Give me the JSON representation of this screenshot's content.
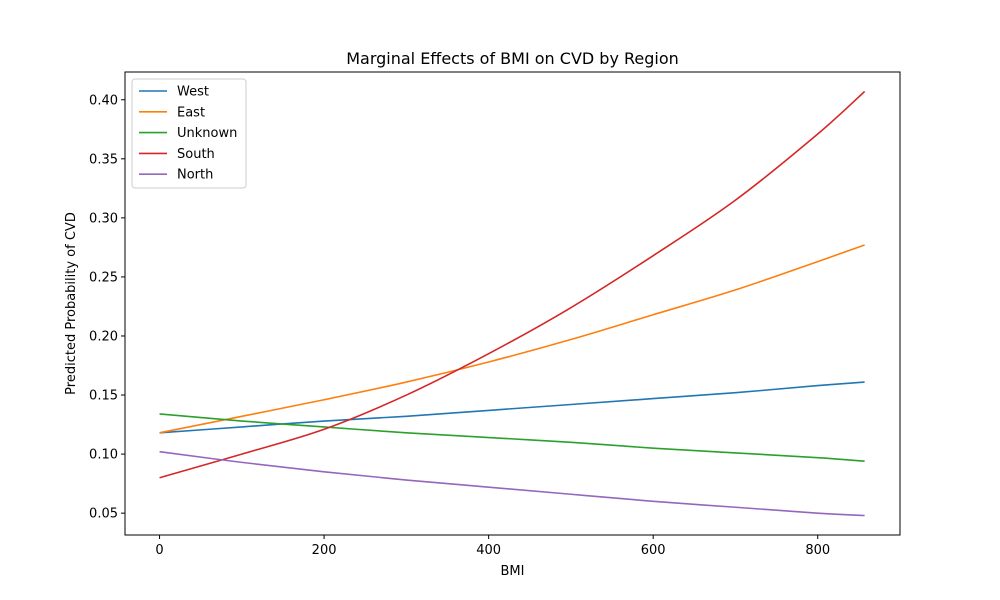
{
  "chart_data": {
    "type": "line",
    "title": "Marginal Effects of BMI on CVD by Region",
    "xlabel": "BMI",
    "ylabel": "Predicted Probability of CVD",
    "xlim": [
      -42,
      900
    ],
    "ylim": [
      0.0315,
      0.4235
    ],
    "xticks": [
      0,
      200,
      400,
      600,
      800
    ],
    "yticks": [
      0.05,
      0.1,
      0.15,
      0.2,
      0.25,
      0.3,
      0.35,
      0.4
    ],
    "xtick_labels": [
      "0",
      "200",
      "400",
      "600",
      "800"
    ],
    "ytick_labels": [
      "0.05",
      "0.10",
      "0.15",
      "0.20",
      "0.25",
      "0.30",
      "0.35",
      "0.40"
    ],
    "grid": false,
    "legend_position": "top-left",
    "x": [
      0,
      100,
      200,
      300,
      400,
      500,
      600,
      700,
      800,
      857
    ],
    "series": [
      {
        "name": "West",
        "color": "#1f77b4",
        "values": [
          0.118,
          0.123,
          0.128,
          0.132,
          0.137,
          0.142,
          0.147,
          0.152,
          0.158,
          0.161
        ]
      },
      {
        "name": "East",
        "color": "#ff7f0e",
        "values": [
          0.118,
          0.132,
          0.146,
          0.161,
          0.178,
          0.197,
          0.218,
          0.239,
          0.263,
          0.277
        ]
      },
      {
        "name": "Unknown",
        "color": "#2ca02c",
        "values": [
          0.134,
          0.128,
          0.123,
          0.118,
          0.114,
          0.11,
          0.105,
          0.101,
          0.097,
          0.094
        ]
      },
      {
        "name": "South",
        "color": "#d62728",
        "values": [
          0.08,
          0.1,
          0.121,
          0.15,
          0.185,
          0.224,
          0.268,
          0.315,
          0.371,
          0.407
        ]
      },
      {
        "name": "North",
        "color": "#9467bd",
        "values": [
          0.102,
          0.093,
          0.085,
          0.078,
          0.072,
          0.066,
          0.06,
          0.055,
          0.05,
          0.048
        ]
      }
    ]
  }
}
